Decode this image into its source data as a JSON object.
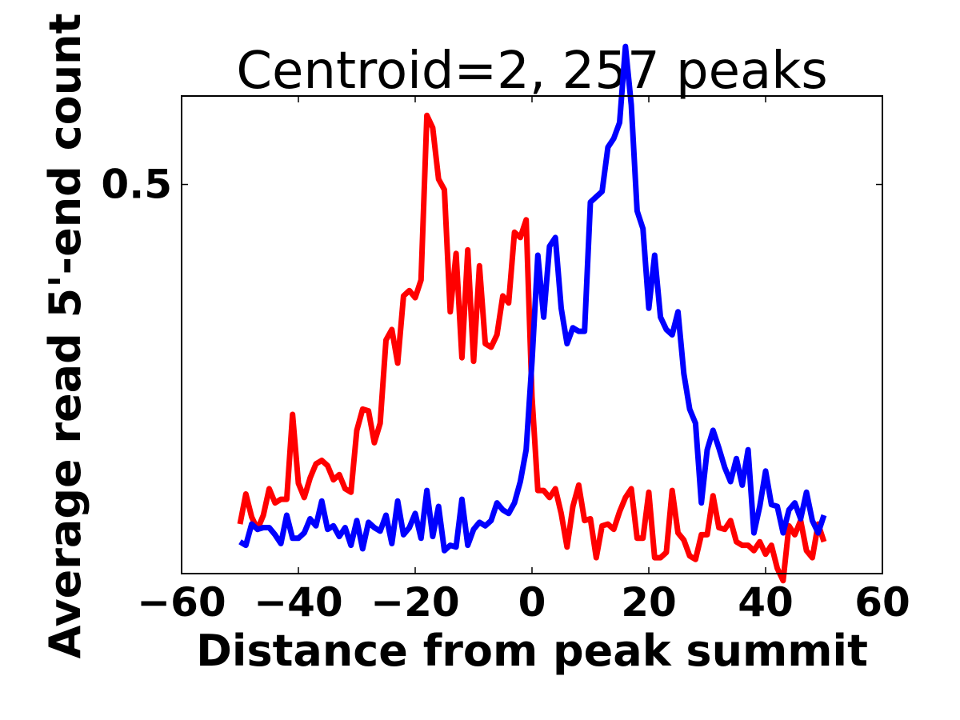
{
  "chart_data": {
    "type": "line",
    "title": "Centroid=2, 257 peaks",
    "xlabel": "Distance from peak summit",
    "ylabel": "Average read 5'-end count",
    "xlim": [
      -60,
      60
    ],
    "ylim": [
      0.28,
      0.55
    ],
    "xticks": [
      -60,
      -40,
      -20,
      0,
      20,
      40,
      60
    ],
    "xtick_labels": [
      "−60",
      "−40",
      "−20",
      "0",
      "20",
      "40",
      "60"
    ],
    "yticks": [
      0.5
    ],
    "ytick_labels": [
      "0.5"
    ],
    "grid": false,
    "x": [
      -50,
      -49,
      -48,
      -47,
      -46,
      -45,
      -44,
      -43,
      -42,
      -41,
      -40,
      -39,
      -38,
      -37,
      -36,
      -35,
      -34,
      -33,
      -32,
      -31,
      -30,
      -29,
      -28,
      -27,
      -26,
      -25,
      -24,
      -23,
      -22,
      -21,
      -20,
      -19,
      -18,
      -17,
      -16,
      -15,
      -14,
      -13,
      -12,
      -11,
      -10,
      -9,
      -8,
      -7,
      -6,
      -5,
      -4,
      -3,
      -2,
      -1,
      0,
      1,
      2,
      3,
      4,
      5,
      6,
      7,
      8,
      9,
      10,
      11,
      12,
      13,
      14,
      15,
      16,
      17,
      18,
      19,
      20,
      21,
      22,
      23,
      24,
      25,
      26,
      27,
      28,
      29,
      30,
      31,
      32,
      33,
      34,
      35,
      36,
      37,
      38,
      39,
      40,
      41,
      42,
      43,
      44,
      45,
      46,
      47,
      48,
      49,
      50
    ],
    "series": [
      {
        "color": "#ff0000",
        "values": [
          0.308,
          0.325,
          0.312,
          0.305,
          0.313,
          0.328,
          0.32,
          0.322,
          0.322,
          0.37,
          0.331,
          0.323,
          0.334,
          0.342,
          0.344,
          0.341,
          0.333,
          0.336,
          0.328,
          0.326,
          0.361,
          0.373,
          0.372,
          0.354,
          0.365,
          0.412,
          0.418,
          0.399,
          0.437,
          0.44,
          0.436,
          0.446,
          0.539,
          0.532,
          0.503,
          0.497,
          0.428,
          0.461,
          0.402,
          0.463,
          0.4,
          0.454,
          0.41,
          0.408,
          0.415,
          0.437,
          0.433,
          0.473,
          0.47,
          0.48,
          0.38,
          0.327,
          0.327,
          0.323,
          0.328,
          0.314,
          0.295,
          0.318,
          0.33,
          0.31,
          0.311,
          0.289,
          0.307,
          0.308,
          0.305,
          0.315,
          0.323,
          0.328,
          0.3,
          0.3,
          0.326,
          0.289,
          0.289,
          0.292,
          0.327,
          0.303,
          0.299,
          0.29,
          0.288,
          0.302,
          0.302,
          0.324,
          0.306,
          0.305,
          0.31,
          0.298,
          0.296,
          0.296,
          0.293,
          0.298,
          0.291,
          0.296,
          0.283,
          0.276,
          0.307,
          0.302,
          0.31,
          0.293,
          0.289,
          0.308,
          0.298
        ]
      },
      {
        "color": "#0000ff",
        "values": [
          0.298,
          0.296,
          0.308,
          0.305,
          0.306,
          0.306,
          0.302,
          0.297,
          0.313,
          0.3,
          0.3,
          0.303,
          0.311,
          0.307,
          0.321,
          0.305,
          0.307,
          0.301,
          0.306,
          0.296,
          0.31,
          0.294,
          0.309,
          0.306,
          0.304,
          0.313,
          0.297,
          0.321,
          0.302,
          0.306,
          0.314,
          0.3,
          0.327,
          0.301,
          0.318,
          0.293,
          0.296,
          0.295,
          0.322,
          0.296,
          0.305,
          0.309,
          0.307,
          0.31,
          0.32,
          0.316,
          0.314,
          0.32,
          0.332,
          0.35,
          0.4,
          0.46,
          0.425,
          0.465,
          0.47,
          0.43,
          0.41,
          0.419,
          0.417,
          0.417,
          0.49,
          0.493,
          0.496,
          0.521,
          0.526,
          0.535,
          0.578,
          0.545,
          0.485,
          0.475,
          0.43,
          0.46,
          0.425,
          0.418,
          0.415,
          0.428,
          0.393,
          0.373,
          0.365,
          0.32,
          0.35,
          0.361,
          0.351,
          0.34,
          0.332,
          0.345,
          0.33,
          0.35,
          0.303,
          0.318,
          0.338,
          0.319,
          0.318,
          0.303,
          0.316,
          0.32,
          0.311,
          0.326,
          0.31,
          0.303,
          0.313
        ]
      }
    ]
  }
}
